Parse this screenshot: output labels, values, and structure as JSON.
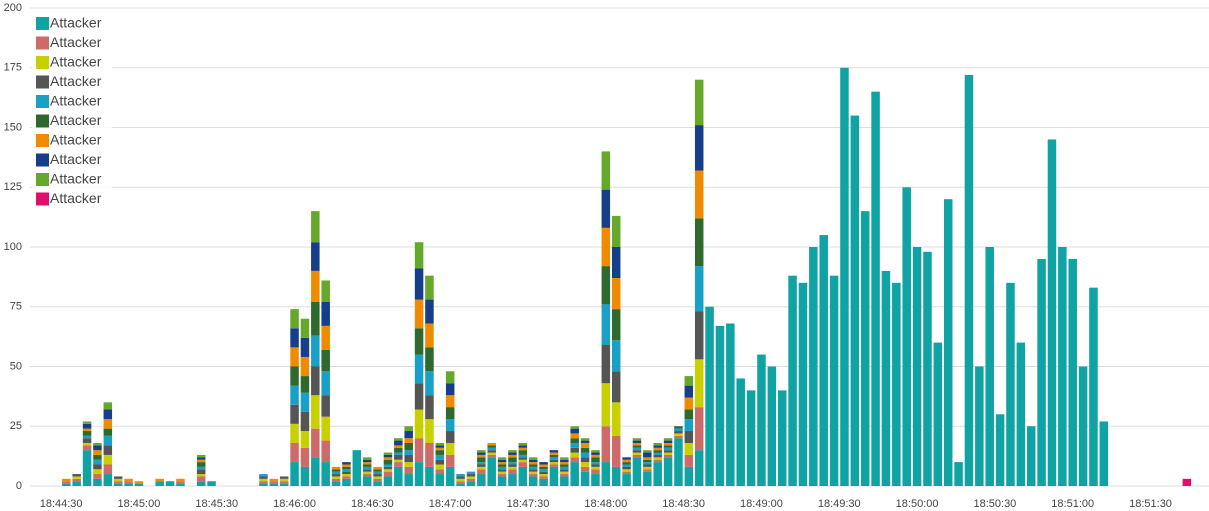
{
  "chart_data": {
    "type": "stacked-bar",
    "x": [
      "18:44:32",
      "18:44:36",
      "18:44:40",
      "18:44:44",
      "18:44:48",
      "18:44:52",
      "18:44:56",
      "18:45:00",
      "18:45:04",
      "18:45:08",
      "18:45:12",
      "18:45:16",
      "18:45:20",
      "18:45:24",
      "18:45:28",
      "18:45:32",
      "18:45:36",
      "18:45:40",
      "18:45:44",
      "18:45:48",
      "18:45:52",
      "18:45:56",
      "18:46:00",
      "18:46:04",
      "18:46:08",
      "18:46:12",
      "18:46:16",
      "18:46:20",
      "18:46:24",
      "18:46:28",
      "18:46:32",
      "18:46:36",
      "18:46:40",
      "18:46:44",
      "18:46:48",
      "18:46:52",
      "18:46:56",
      "18:47:00",
      "18:47:04",
      "18:47:08",
      "18:47:12",
      "18:47:16",
      "18:47:20",
      "18:47:24",
      "18:47:28",
      "18:47:32",
      "18:47:36",
      "18:47:40",
      "18:47:44",
      "18:47:48",
      "18:47:52",
      "18:47:56",
      "18:48:00",
      "18:48:04",
      "18:48:08",
      "18:48:12",
      "18:48:16",
      "18:48:20",
      "18:48:24",
      "18:48:28",
      "18:48:32",
      "18:48:36",
      "18:48:40",
      "18:48:44",
      "18:48:48",
      "18:48:52",
      "18:48:56",
      "18:49:00",
      "18:49:04",
      "18:49:08",
      "18:49:12",
      "18:49:16",
      "18:49:20",
      "18:49:24",
      "18:49:28",
      "18:49:32",
      "18:49:36",
      "18:49:40",
      "18:49:44",
      "18:49:48",
      "18:49:52",
      "18:49:56",
      "18:50:00",
      "18:50:04",
      "18:50:08",
      "18:50:12",
      "18:50:16",
      "18:50:20",
      "18:50:24",
      "18:50:28",
      "18:50:32",
      "18:50:36",
      "18:50:40",
      "18:50:44",
      "18:50:48",
      "18:50:52",
      "18:50:56",
      "18:51:00",
      "18:51:04",
      "18:51:08",
      "18:51:12",
      "18:51:16",
      "18:51:20",
      "18:51:24",
      "18:51:28",
      "18:51:32",
      "18:51:36",
      "18:51:40",
      "18:51:44"
    ],
    "series": [
      {
        "name": "Attacker",
        "color": "#0fa3a3",
        "values": [
          1,
          2,
          15,
          3,
          5,
          1,
          1,
          1,
          0,
          2,
          2,
          1,
          0,
          2,
          2,
          0,
          0,
          0,
          0,
          1,
          1,
          1,
          10,
          8,
          12,
          10,
          2,
          3,
          15,
          4,
          2,
          4,
          8,
          5,
          10,
          8,
          5,
          8,
          1,
          2,
          5,
          12,
          4,
          5,
          8,
          4,
          3,
          8,
          4,
          10,
          6,
          5,
          10,
          8,
          5,
          12,
          6,
          10,
          12,
          20,
          8,
          15,
          75,
          67,
          68,
          45,
          40,
          55,
          50,
          40,
          88,
          85,
          100,
          105,
          88,
          175,
          155,
          115,
          165,
          90,
          85,
          125,
          100,
          98,
          60,
          120,
          10,
          172,
          50,
          100,
          30,
          85,
          60,
          25,
          95,
          145,
          100,
          95,
          50,
          83,
          27,
          0,
          0,
          0,
          0,
          0,
          0,
          0,
          0
        ]
      },
      {
        "name": "Attacker",
        "color": "#cf6a6a",
        "values": [
          1,
          1,
          2,
          2,
          4,
          1,
          1,
          0,
          0,
          0,
          0,
          1,
          0,
          2,
          0,
          0,
          0,
          0,
          0,
          1,
          1,
          1,
          8,
          8,
          12,
          9,
          1,
          1,
          0,
          1,
          1,
          2,
          2,
          3,
          10,
          10,
          2,
          5,
          1,
          1,
          2,
          1,
          1,
          2,
          2,
          1,
          1,
          1,
          1,
          2,
          2,
          2,
          15,
          13,
          1,
          1,
          1,
          1,
          1,
          1,
          5,
          18,
          0,
          0,
          0,
          0,
          0,
          0,
          0,
          0,
          0,
          0,
          0,
          0,
          0,
          0,
          0,
          0,
          0,
          0,
          0,
          0,
          0,
          0,
          0,
          0,
          0,
          0,
          0,
          0,
          0,
          0,
          0,
          0,
          0,
          0,
          0,
          0,
          0,
          0,
          0,
          0,
          0,
          0,
          0,
          0,
          0,
          0,
          0
        ]
      },
      {
        "name": "Attacker",
        "color": "#c8d000",
        "values": [
          0,
          1,
          1,
          2,
          4,
          1,
          0,
          0,
          0,
          0,
          0,
          0,
          0,
          1,
          0,
          0,
          0,
          0,
          0,
          1,
          0,
          1,
          8,
          7,
          14,
          10,
          1,
          1,
          0,
          1,
          1,
          1,
          1,
          2,
          12,
          10,
          2,
          5,
          1,
          1,
          1,
          1,
          1,
          1,
          1,
          1,
          1,
          1,
          1,
          2,
          2,
          1,
          18,
          14,
          1,
          1,
          1,
          1,
          1,
          1,
          5,
          20,
          0,
          0,
          0,
          0,
          0,
          0,
          0,
          0,
          0,
          0,
          0,
          0,
          0,
          0,
          0,
          0,
          0,
          0,
          0,
          0,
          0,
          0,
          0,
          0,
          0,
          0,
          0,
          0,
          0,
          0,
          0,
          0,
          0,
          0,
          0,
          0,
          0,
          0,
          0,
          0,
          0,
          0,
          0,
          0,
          0,
          0,
          0
        ]
      },
      {
        "name": "Attacker",
        "color": "#555555",
        "values": [
          0,
          1,
          2,
          2,
          4,
          1,
          0,
          0,
          0,
          0,
          0,
          0,
          0,
          2,
          0,
          0,
          0,
          0,
          0,
          1,
          0,
          1,
          8,
          8,
          12,
          9,
          1,
          1,
          0,
          1,
          1,
          1,
          2,
          3,
          11,
          10,
          2,
          5,
          1,
          1,
          1,
          1,
          1,
          1,
          1,
          1,
          1,
          1,
          1,
          2,
          2,
          1,
          16,
          13,
          1,
          1,
          1,
          1,
          1,
          1,
          5,
          20,
          0,
          0,
          0,
          0,
          0,
          0,
          0,
          0,
          0,
          0,
          0,
          0,
          0,
          0,
          0,
          0,
          0,
          0,
          0,
          0,
          0,
          0,
          0,
          0,
          0,
          0,
          0,
          0,
          0,
          0,
          0,
          0,
          0,
          0,
          0,
          0,
          0,
          0,
          0,
          0,
          0,
          0,
          0,
          0,
          0,
          0,
          0
        ]
      },
      {
        "name": "Attacker",
        "color": "#18a0c6",
        "values": [
          0,
          0,
          1,
          2,
          4,
          0,
          0,
          0,
          0,
          0,
          0,
          0,
          0,
          1,
          0,
          0,
          0,
          0,
          0,
          1,
          0,
          0,
          8,
          8,
          13,
          10,
          1,
          1,
          0,
          1,
          1,
          1,
          1,
          2,
          12,
          10,
          2,
          5,
          1,
          1,
          1,
          1,
          1,
          1,
          1,
          1,
          1,
          1,
          1,
          2,
          2,
          1,
          17,
          13,
          1,
          1,
          1,
          1,
          1,
          1,
          5,
          19,
          0,
          0,
          0,
          0,
          0,
          0,
          0,
          0,
          0,
          0,
          0,
          0,
          0,
          0,
          0,
          0,
          0,
          0,
          0,
          0,
          0,
          0,
          0,
          0,
          0,
          0,
          0,
          0,
          0,
          0,
          0,
          0,
          0,
          0,
          0,
          0,
          0,
          0,
          0,
          0,
          0,
          0,
          0,
          0,
          0,
          0,
          0
        ]
      },
      {
        "name": "Attacker",
        "color": "#2e6a2e",
        "values": [
          0,
          0,
          2,
          2,
          3,
          0,
          0,
          0,
          0,
          0,
          0,
          0,
          0,
          2,
          0,
          0,
          0,
          0,
          0,
          0,
          0,
          0,
          8,
          7,
          14,
          9,
          1,
          1,
          0,
          1,
          1,
          2,
          2,
          3,
          11,
          10,
          2,
          5,
          0,
          0,
          2,
          1,
          1,
          2,
          2,
          1,
          1,
          1,
          1,
          2,
          2,
          2,
          16,
          13,
          1,
          1,
          1,
          1,
          1,
          1,
          4,
          20,
          0,
          0,
          0,
          0,
          0,
          0,
          0,
          0,
          0,
          0,
          0,
          0,
          0,
          0,
          0,
          0,
          0,
          0,
          0,
          0,
          0,
          0,
          0,
          0,
          0,
          0,
          0,
          0,
          0,
          0,
          0,
          0,
          0,
          0,
          0,
          0,
          0,
          0,
          0,
          0,
          0,
          0,
          0,
          0,
          0,
          0,
          0
        ]
      },
      {
        "name": "Attacker",
        "color": "#ef8b00",
        "values": [
          1,
          0,
          1,
          2,
          4,
          0,
          1,
          1,
          0,
          1,
          0,
          1,
          0,
          1,
          0,
          0,
          0,
          0,
          0,
          0,
          1,
          0,
          8,
          8,
          13,
          10,
          1,
          1,
          0,
          1,
          1,
          1,
          1,
          2,
          12,
          10,
          1,
          5,
          0,
          0,
          1,
          1,
          1,
          1,
          1,
          1,
          1,
          1,
          1,
          2,
          2,
          1,
          16,
          13,
          1,
          1,
          1,
          1,
          1,
          0,
          5,
          20,
          0,
          0,
          0,
          0,
          0,
          0,
          0,
          0,
          0,
          0,
          0,
          0,
          0,
          0,
          0,
          0,
          0,
          0,
          0,
          0,
          0,
          0,
          0,
          0,
          0,
          0,
          0,
          0,
          0,
          0,
          0,
          0,
          0,
          0,
          0,
          0,
          0,
          0,
          0,
          0,
          0,
          0,
          0,
          0,
          0,
          0,
          0
        ]
      },
      {
        "name": "Attacker",
        "color": "#173e8a",
        "values": [
          0,
          0,
          2,
          2,
          4,
          0,
          0,
          0,
          0,
          0,
          0,
          0,
          0,
          1,
          0,
          0,
          0,
          0,
          0,
          0,
          0,
          0,
          8,
          8,
          12,
          10,
          0,
          1,
          0,
          1,
          0,
          1,
          2,
          3,
          13,
          10,
          1,
          5,
          0,
          0,
          1,
          0,
          1,
          1,
          1,
          1,
          1,
          1,
          1,
          2,
          1,
          1,
          16,
          13,
          1,
          1,
          2,
          1,
          1,
          0,
          5,
          19,
          0,
          0,
          0,
          0,
          0,
          0,
          0,
          0,
          0,
          0,
          0,
          0,
          0,
          0,
          0,
          0,
          0,
          0,
          0,
          0,
          0,
          0,
          0,
          0,
          0,
          0,
          0,
          0,
          0,
          0,
          0,
          0,
          0,
          0,
          0,
          0,
          0,
          0,
          0,
          0,
          0,
          0,
          0,
          0,
          0,
          0,
          0
        ]
      },
      {
        "name": "Attacker",
        "color": "#66a82a",
        "values": [
          0,
          0,
          1,
          1,
          3,
          0,
          0,
          0,
          0,
          0,
          0,
          0,
          0,
          1,
          0,
          0,
          0,
          0,
          0,
          0,
          0,
          0,
          8,
          8,
          13,
          9,
          0,
          0,
          0,
          1,
          0,
          1,
          1,
          2,
          11,
          10,
          1,
          5,
          0,
          0,
          1,
          0,
          1,
          1,
          1,
          1,
          0,
          0,
          1,
          1,
          1,
          1,
          16,
          13,
          0,
          1,
          1,
          1,
          1,
          0,
          4,
          19,
          0,
          0,
          0,
          0,
          0,
          0,
          0,
          0,
          0,
          0,
          0,
          0,
          0,
          0,
          0,
          0,
          0,
          0,
          0,
          0,
          0,
          0,
          0,
          0,
          0,
          0,
          0,
          0,
          0,
          0,
          0,
          0,
          0,
          0,
          0,
          0,
          0,
          0,
          0,
          0,
          0,
          0,
          0,
          0,
          0,
          0,
          0
        ]
      },
      {
        "name": "Attacker",
        "color": "#df0f6b",
        "values": [
          0,
          0,
          0,
          0,
          0,
          0,
          0,
          0,
          0,
          0,
          0,
          0,
          0,
          0,
          0,
          0,
          0,
          0,
          0,
          0,
          0,
          0,
          0,
          0,
          0,
          0,
          0,
          0,
          0,
          0,
          0,
          0,
          0,
          0,
          0,
          0,
          0,
          0,
          0,
          0,
          0,
          0,
          0,
          0,
          0,
          0,
          0,
          0,
          0,
          0,
          0,
          0,
          0,
          0,
          0,
          0,
          0,
          0,
          0,
          0,
          0,
          0,
          0,
          0,
          0,
          0,
          0,
          0,
          0,
          0,
          0,
          0,
          0,
          0,
          0,
          0,
          0,
          0,
          0,
          0,
          0,
          0,
          0,
          0,
          0,
          0,
          0,
          0,
          0,
          0,
          0,
          0,
          0,
          0,
          0,
          0,
          0,
          0,
          0,
          0,
          0,
          0,
          0,
          0,
          0,
          0,
          0,
          0,
          3
        ]
      }
    ],
    "xlim": [
      "18:44:18",
      "18:51:51"
    ],
    "xticks": [
      "18:44:30",
      "18:45:00",
      "18:45:30",
      "18:46:00",
      "18:46:30",
      "18:47:00",
      "18:47:30",
      "18:48:00",
      "18:48:30",
      "18:49:00",
      "18:49:30",
      "18:50:00",
      "18:50:30",
      "18:51:00",
      "18:51:30"
    ],
    "ylim": [
      0,
      200
    ],
    "yticks": [
      0,
      25,
      50,
      75,
      100,
      125,
      150,
      175,
      200
    ],
    "grid": true,
    "legend": "upper-left"
  }
}
